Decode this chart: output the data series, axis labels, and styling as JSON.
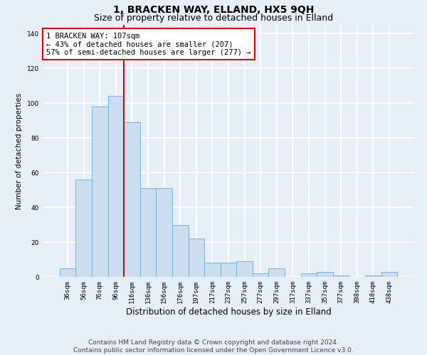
{
  "title": "1, BRACKEN WAY, ELLAND, HX5 9QH",
  "subtitle": "Size of property relative to detached houses in Elland",
  "xlabel": "Distribution of detached houses by size in Elland",
  "ylabel": "Number of detached properties",
  "categories": [
    "36sqm",
    "56sqm",
    "76sqm",
    "96sqm",
    "116sqm",
    "136sqm",
    "156sqm",
    "176sqm",
    "197sqm",
    "217sqm",
    "237sqm",
    "257sqm",
    "277sqm",
    "297sqm",
    "317sqm",
    "337sqm",
    "357sqm",
    "377sqm",
    "398sqm",
    "418sqm",
    "438sqm"
  ],
  "values": [
    5,
    56,
    98,
    104,
    89,
    51,
    51,
    30,
    22,
    8,
    8,
    9,
    2,
    5,
    0,
    2,
    3,
    1,
    0,
    1,
    3
  ],
  "bar_color": "#ccddef",
  "bar_edge_color": "#7aafd4",
  "reference_line_color": "#cc0000",
  "annotation_text": "1 BRACKEN WAY: 107sqm\n← 43% of detached houses are smaller (207)\n57% of semi-detached houses are larger (277) →",
  "annotation_box_color": "#ffffff",
  "annotation_box_edge_color": "#cc0000",
  "ylim": [
    0,
    145
  ],
  "yticks": [
    0,
    20,
    40,
    60,
    80,
    100,
    120,
    140
  ],
  "footer_line1": "Contains HM Land Registry data © Crown copyright and database right 2024.",
  "footer_line2": "Contains public sector information licensed under the Open Government Licence v3.0.",
  "background_color": "#e8eef5",
  "plot_background_color": "#e8eef5",
  "grid_color": "#ffffff",
  "title_fontsize": 10,
  "subtitle_fontsize": 9,
  "xlabel_fontsize": 8.5,
  "ylabel_fontsize": 7.5,
  "tick_fontsize": 6.5,
  "annotation_fontsize": 7.5,
  "footer_fontsize": 6.5
}
